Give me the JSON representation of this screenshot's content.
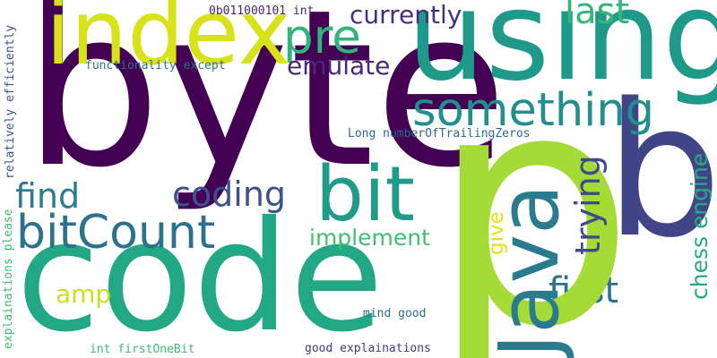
{
  "words": {
    "byte": {
      "text": "byte",
      "color": "#440154"
    },
    "p": {
      "text": "p",
      "color": "#a5db36"
    },
    "code": {
      "text": "code",
      "color": "#22a884"
    },
    "using": {
      "text": "using",
      "color": "#1f998a"
    },
    "index": {
      "text": "index",
      "color": "#d7e219"
    },
    "b": {
      "text": "b",
      "color": "#414487"
    },
    "java": {
      "text": "Java",
      "color": "#2a7b8e"
    },
    "bit": {
      "text": "bit",
      "color": "#1e9c89"
    },
    "something": {
      "text": "something",
      "color": "#218f8d"
    },
    "bitcount": {
      "text": "bitCount",
      "color": "#2c728e"
    },
    "pre": {
      "text": "pre",
      "color": "#31b57b"
    },
    "coding": {
      "text": "coding",
      "color": "#3b528b"
    },
    "find": {
      "text": "find",
      "color": "#287d8e"
    },
    "trying": {
      "text": "trying",
      "color": "#3e4a89"
    },
    "currently": {
      "text": "currently",
      "color": "#46307e"
    },
    "last": {
      "text": "last",
      "color": "#35b779"
    },
    "first": {
      "text": "first",
      "color": "#2c728e"
    },
    "emulate": {
      "text": "emulate",
      "color": "#482878"
    },
    "implement": {
      "text": "implement",
      "color": "#42be71"
    },
    "amp": {
      "text": "amp",
      "color": "#c8e020"
    },
    "chess_engine": {
      "text": "chess engine",
      "color": "#25ab82"
    },
    "give": {
      "text": "give",
      "color": "#e0e318"
    },
    "long_trailing": {
      "text": "Long numberOfTrailingZeros",
      "color": "#31688e"
    },
    "function_except": {
      "text": "functionality except",
      "color": "#2c728e"
    },
    "relatively": {
      "text": "relatively efficiently",
      "color": "#3b528b"
    },
    "binary_int": {
      "text": "0b011000101 int",
      "color": "#482475"
    },
    "explain_please": {
      "text": "explainations please",
      "color": "#3bbb75"
    },
    "mind_good": {
      "text": "mind good",
      "color": "#2d708e"
    },
    "int_first": {
      "text": "int firstOneBit",
      "color": "#3bbb75"
    },
    "good_explain": {
      "text": "good explainations",
      "color": "#443983"
    }
  }
}
